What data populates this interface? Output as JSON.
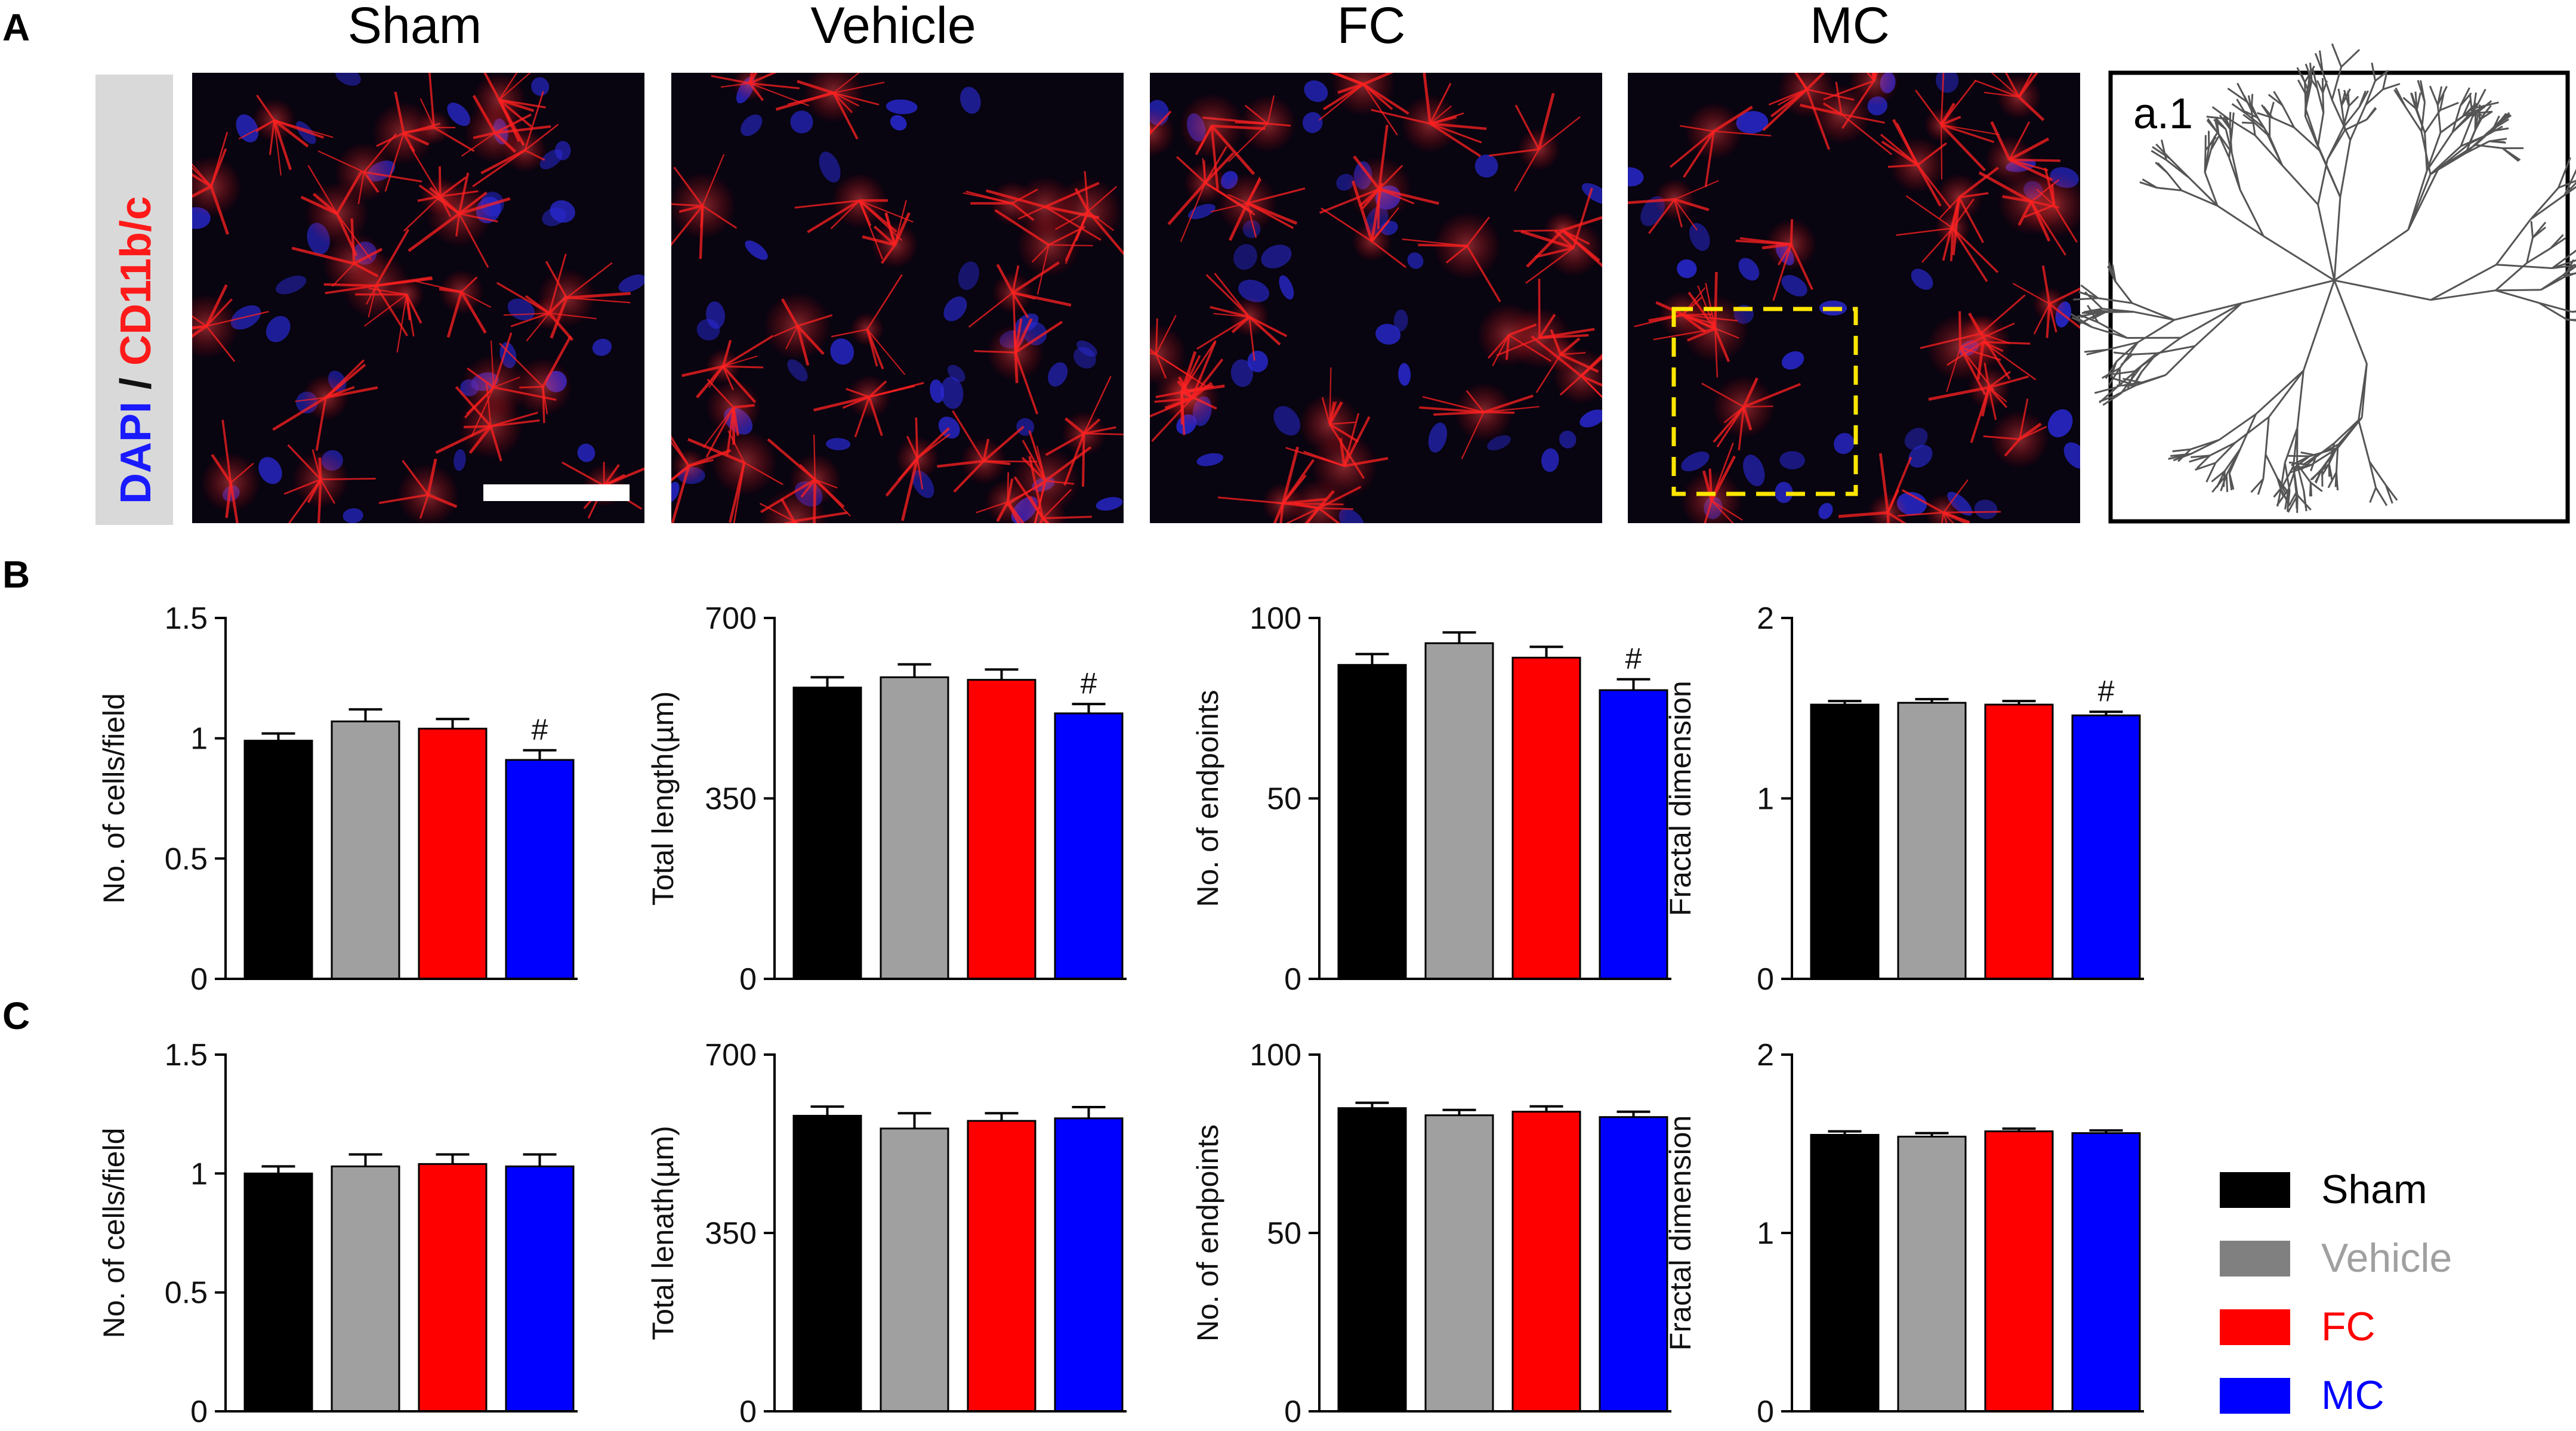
{
  "panel_labels": {
    "a": "A",
    "b": "B",
    "c": "C"
  },
  "micrograph_titles": [
    "Sham",
    "Vehicle",
    "FC",
    "MC"
  ],
  "stain_label": {
    "dapi": "DAPI",
    "separator": " / ",
    "marker": "CD11b/c"
  },
  "inset_label": "a.1",
  "colors": {
    "Sham": "#000000",
    "Vehicle": "#a0a0a0",
    "FC": "#ff0000",
    "MC": "#0000ff",
    "dapi": "#1a1aff",
    "marker": "#ff1a1a",
    "highlight_box": "#ffe600"
  },
  "legend": [
    {
      "name": "Sham",
      "color": "#000000",
      "text_color": "#000000"
    },
    {
      "name": "Vehicle",
      "color": "#808080",
      "text_color": "#a0a0a0"
    },
    {
      "name": "FC",
      "color": "#ff0000",
      "text_color": "#ff0000"
    },
    {
      "name": "MC",
      "color": "#0000ff",
      "text_color": "#0000ff"
    }
  ],
  "chart_data": [
    {
      "type": "bar",
      "panel": "B",
      "categories": [
        "Sham",
        "Vehicle",
        "FC",
        "MC"
      ],
      "values": [
        0.99,
        1.07,
        1.04,
        0.91
      ],
      "errors": [
        0.03,
        0.05,
        0.04,
        0.04
      ],
      "significance": [
        "",
        "",
        "",
        "#"
      ],
      "ylabel": "No. of cells/field",
      "ylim": [
        0,
        1.5
      ],
      "yticks": [
        0,
        0.5,
        1,
        1.5
      ],
      "ytick_labels": [
        "0",
        "0.5",
        "1",
        "1.5"
      ]
    },
    {
      "type": "bar",
      "panel": "B",
      "categories": [
        "Sham",
        "Vehicle",
        "FC",
        "MC"
      ],
      "values": [
        565,
        585,
        580,
        515
      ],
      "errors": [
        20,
        25,
        20,
        18
      ],
      "significance": [
        "",
        "",
        "",
        "#"
      ],
      "ylabel": "Total length(µm)",
      "ylim": [
        0,
        700
      ],
      "yticks": [
        0,
        350,
        700
      ],
      "ytick_labels": [
        "0",
        "350",
        "700"
      ]
    },
    {
      "type": "bar",
      "panel": "B",
      "categories": [
        "Sham",
        "Vehicle",
        "FC",
        "MC"
      ],
      "values": [
        87,
        93,
        89,
        80
      ],
      "errors": [
        3,
        3,
        3,
        3
      ],
      "significance": [
        "",
        "",
        "",
        "#"
      ],
      "ylabel": "No. of endpoints",
      "ylim": [
        0,
        100
      ],
      "yticks": [
        0,
        50,
        100
      ],
      "ytick_labels": [
        "0",
        "50",
        "100"
      ]
    },
    {
      "type": "bar",
      "panel": "B",
      "categories": [
        "Sham",
        "Vehicle",
        "FC",
        "MC"
      ],
      "values": [
        1.52,
        1.53,
        1.52,
        1.46
      ],
      "errors": [
        0.02,
        0.02,
        0.02,
        0.02
      ],
      "significance": [
        "",
        "",
        "",
        "#"
      ],
      "ylabel": "Fractal dimension",
      "ylim": [
        0,
        2
      ],
      "yticks": [
        0,
        1,
        2
      ],
      "ytick_labels": [
        "0",
        "1",
        "2"
      ]
    },
    {
      "type": "bar",
      "panel": "C",
      "categories": [
        "Sham",
        "Vehicle",
        "FC",
        "MC"
      ],
      "values": [
        1.0,
        1.03,
        1.04,
        1.03
      ],
      "errors": [
        0.03,
        0.05,
        0.04,
        0.05
      ],
      "significance": [
        "",
        "",
        "",
        ""
      ],
      "ylabel": "No. of cells/field",
      "ylim": [
        0,
        1.5
      ],
      "yticks": [
        0,
        0.5,
        1,
        1.5
      ],
      "ytick_labels": [
        "0",
        "0.5",
        "1",
        "1.5"
      ]
    },
    {
      "type": "bar",
      "panel": "C",
      "categories": [
        "Sham",
        "Vehicle",
        "FC",
        "MC"
      ],
      "values": [
        580,
        555,
        570,
        575
      ],
      "errors": [
        18,
        30,
        15,
        22
      ],
      "significance": [
        "",
        "",
        "",
        ""
      ],
      "ylabel": "Total lenath(µm)",
      "ylim": [
        0,
        700
      ],
      "yticks": [
        0,
        350,
        700
      ],
      "ytick_labels": [
        "0",
        "350",
        "700"
      ]
    },
    {
      "type": "bar",
      "panel": "C",
      "categories": [
        "Sham",
        "Vehicle",
        "FC",
        "MC"
      ],
      "values": [
        85,
        83,
        84,
        82.5
      ],
      "errors": [
        1.5,
        1.5,
        1.5,
        1.5
      ],
      "significance": [
        "",
        "",
        "",
        ""
      ],
      "ylabel": "No. of endpoints",
      "ylim": [
        0,
        100
      ],
      "yticks": [
        0,
        50,
        100
      ],
      "ytick_labels": [
        "0",
        "50",
        "100"
      ]
    },
    {
      "type": "bar",
      "panel": "C",
      "categories": [
        "Sham",
        "Vehicle",
        "FC",
        "MC"
      ],
      "values": [
        1.55,
        1.54,
        1.57,
        1.56
      ],
      "errors": [
        0.02,
        0.02,
        0.015,
        0.015
      ],
      "significance": [
        "",
        "",
        "",
        ""
      ],
      "ylabel": "Fractal dimension",
      "ylim": [
        0,
        2
      ],
      "yticks": [
        0,
        1,
        2
      ],
      "ytick_labels": [
        "0",
        "1",
        "2"
      ]
    }
  ]
}
